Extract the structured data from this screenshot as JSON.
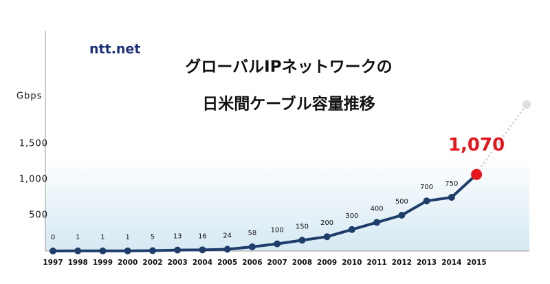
{
  "logo": "ntt.net",
  "chart_data": {
    "type": "line",
    "title": [
      "グローバルIPネットワークの",
      "日米間ケーブル容量推移"
    ],
    "y_label": "Gbps",
    "categories": [
      "1997",
      "1998",
      "1999",
      "2000",
      "2002",
      "2003",
      "2004",
      "2005",
      "2006",
      "2007",
      "2008",
      "2009",
      "2010",
      "2011",
      "2012",
      "2013",
      "2014",
      "2015"
    ],
    "values": [
      0,
      1,
      1,
      1,
      5,
      13,
      16,
      24,
      58,
      100,
      150,
      200,
      300,
      400,
      500,
      700,
      750,
      1070
    ],
    "value_labels": [
      "0",
      "1",
      "1",
      "1",
      "5",
      "13",
      "16",
      "24",
      "58",
      "100",
      "150",
      "200",
      "300",
      "400",
      "500",
      "700",
      "750",
      "1,070"
    ],
    "color": "#1f3d6b",
    "highlight_color": "#e8141b",
    "ylim": [
      0,
      3000
    ],
    "yticks": [
      500,
      {
        "value": 1000,
        "label": "1,000"
      },
      {
        "value": 1500,
        "label": "1,500"
      }
    ]
  }
}
